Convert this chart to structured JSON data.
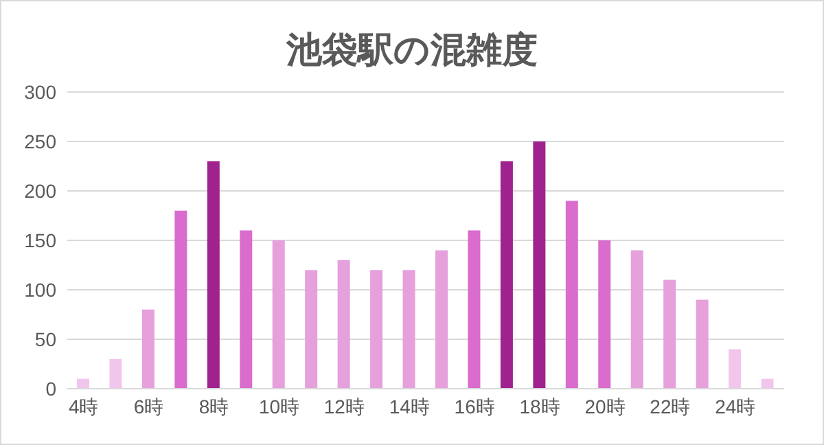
{
  "chart_data": {
    "type": "bar",
    "title": "池袋駅の混雑度",
    "categories": [
      "4時",
      null,
      "6時",
      null,
      "8時",
      null,
      "10時",
      null,
      "12時",
      null,
      "14時",
      null,
      "16時",
      null,
      "18時",
      null,
      "20時",
      null,
      "22時",
      null,
      "24時",
      null
    ],
    "values": [
      10,
      30,
      80,
      180,
      230,
      160,
      150,
      120,
      130,
      120,
      120,
      140,
      160,
      230,
      250,
      190,
      150,
      140,
      110,
      90,
      40,
      10
    ],
    "colors": [
      "#f2c6ec",
      "#f2c6ec",
      "#e6a0dc",
      "#d96ccd",
      "#a0228e",
      "#d96ccd",
      "#e6a0dc",
      "#e6a0dc",
      "#e6a0dc",
      "#e6a0dc",
      "#e6a0dc",
      "#e6a0dc",
      "#d96ccd",
      "#a0228e",
      "#a0228e",
      "#d96ccd",
      "#d96ccd",
      "#e6a0dc",
      "#e6a0dc",
      "#e6a0dc",
      "#f2c6ec",
      "#f2c6ec"
    ],
    "ylim": [
      0,
      300
    ],
    "yticks": [
      0,
      50,
      100,
      150,
      200,
      250,
      300
    ],
    "grid": "y"
  }
}
